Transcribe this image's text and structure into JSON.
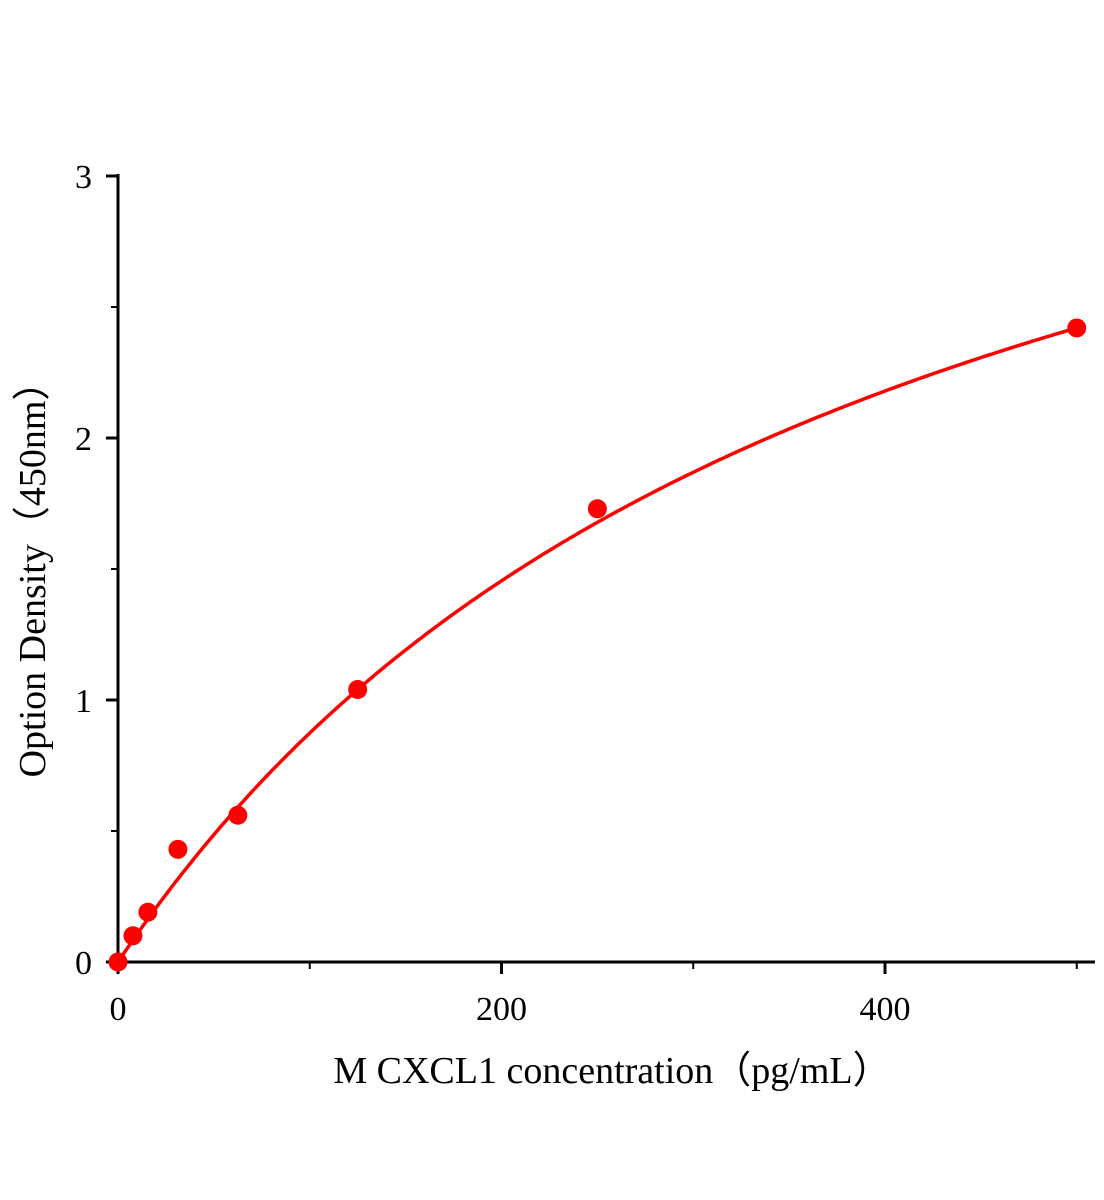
{
  "chart_data": {
    "type": "scatter",
    "title": "",
    "xlabel": "M CXCL1 concentration（pg/mL）",
    "ylabel": "Option Density（450nm）",
    "xlim": [
      0,
      510
    ],
    "ylim": [
      0,
      3
    ],
    "x_ticks": [
      0,
      200,
      400
    ],
    "x_tick_labels": [
      "0",
      "200",
      "400"
    ],
    "x_minor_ticks": [
      100,
      300,
      500
    ],
    "y_ticks": [
      0,
      1,
      2,
      3
    ],
    "y_tick_labels": [
      "0",
      "1",
      "2",
      "3"
    ],
    "y_minor_ticks": [
      0.5,
      1.5,
      2.5
    ],
    "grid": false,
    "color": "#ff0000",
    "points": {
      "x": [
        0,
        7.8,
        15.6,
        31.25,
        62.5,
        125,
        250,
        500
      ],
      "y": [
        0.0,
        0.1,
        0.19,
        0.43,
        0.56,
        1.04,
        1.73,
        2.42
      ]
    },
    "fit_curve": true
  }
}
